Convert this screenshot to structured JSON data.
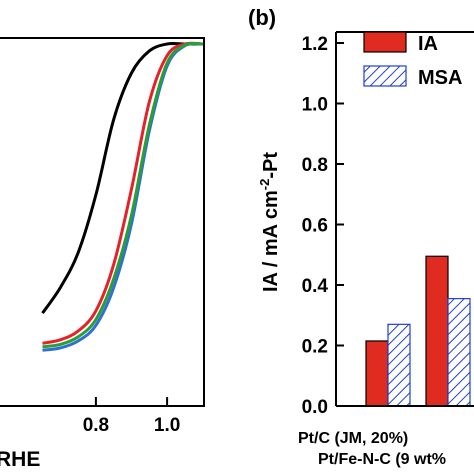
{
  "chart_data": [
    {
      "type": "line",
      "xlabel": "RHE",
      "xlim": [
        0.65,
        1.1
      ],
      "x_ticks": [
        "0.8",
        "1.0"
      ],
      "series": [
        {
          "color": "#000000",
          "points": [
            [
              0.65,
              -4.64
            ],
            [
              0.7,
              -4.2
            ],
            [
              0.75,
              -3.6
            ],
            [
              0.8,
              -2.6
            ],
            [
              0.85,
              -1.3
            ],
            [
              0.9,
              -0.5
            ],
            [
              0.95,
              -0.12
            ],
            [
              1.0,
              0.0
            ],
            [
              1.05,
              0.0
            ],
            [
              1.1,
              0.0
            ]
          ]
        },
        {
          "color": "#e8202a",
          "points": [
            [
              0.65,
              -5.16
            ],
            [
              0.7,
              -5.1
            ],
            [
              0.75,
              -4.95
            ],
            [
              0.8,
              -4.6
            ],
            [
              0.85,
              -3.8
            ],
            [
              0.9,
              -2.5
            ],
            [
              0.95,
              -1.0
            ],
            [
              1.0,
              -0.2
            ],
            [
              1.05,
              0.0
            ],
            [
              1.1,
              0.0
            ]
          ]
        },
        {
          "color": "#2f6fd6",
          "points": [
            [
              0.65,
              -5.28
            ],
            [
              0.7,
              -5.24
            ],
            [
              0.75,
              -5.12
            ],
            [
              0.8,
              -4.85
            ],
            [
              0.85,
              -4.2
            ],
            [
              0.9,
              -3.1
            ],
            [
              0.95,
              -1.5
            ],
            [
              1.0,
              -0.38
            ],
            [
              1.05,
              -0.03
            ],
            [
              1.1,
              0.0
            ]
          ]
        },
        {
          "color": "#28a035",
          "points": [
            [
              0.65,
              -5.22
            ],
            [
              0.7,
              -5.18
            ],
            [
              0.75,
              -5.05
            ],
            [
              0.8,
              -4.75
            ],
            [
              0.85,
              -4.05
            ],
            [
              0.9,
              -2.95
            ],
            [
              0.95,
              -1.4
            ],
            [
              1.0,
              -0.33
            ],
            [
              1.05,
              -0.02
            ],
            [
              1.1,
              0.0
            ]
          ]
        }
      ]
    },
    {
      "type": "bar",
      "panel_label": "(b)",
      "ylabel": "IA / mA cm",
      "ylabel_sup": "-2",
      "ylabel_suffix": "-Pt",
      "ylim": [
        0.0,
        1.3
      ],
      "y_ticks": [
        "0.0",
        "0.2",
        "0.4",
        "0.6",
        "0.8",
        "1.0",
        "1.2"
      ],
      "categories": [
        "Pt/C (JM, 20%)",
        "Pt/Fe-N-C (9 wt%"
      ],
      "series": [
        {
          "name": "IA",
          "values": [
            0.215,
            0.495
          ],
          "color": "#e02b20",
          "pattern": "solid"
        },
        {
          "name": "MSA",
          "values": [
            0.27,
            0.355
          ],
          "color": "#2040d0",
          "pattern": "hatch"
        }
      ],
      "legend_position": "top-right"
    }
  ]
}
